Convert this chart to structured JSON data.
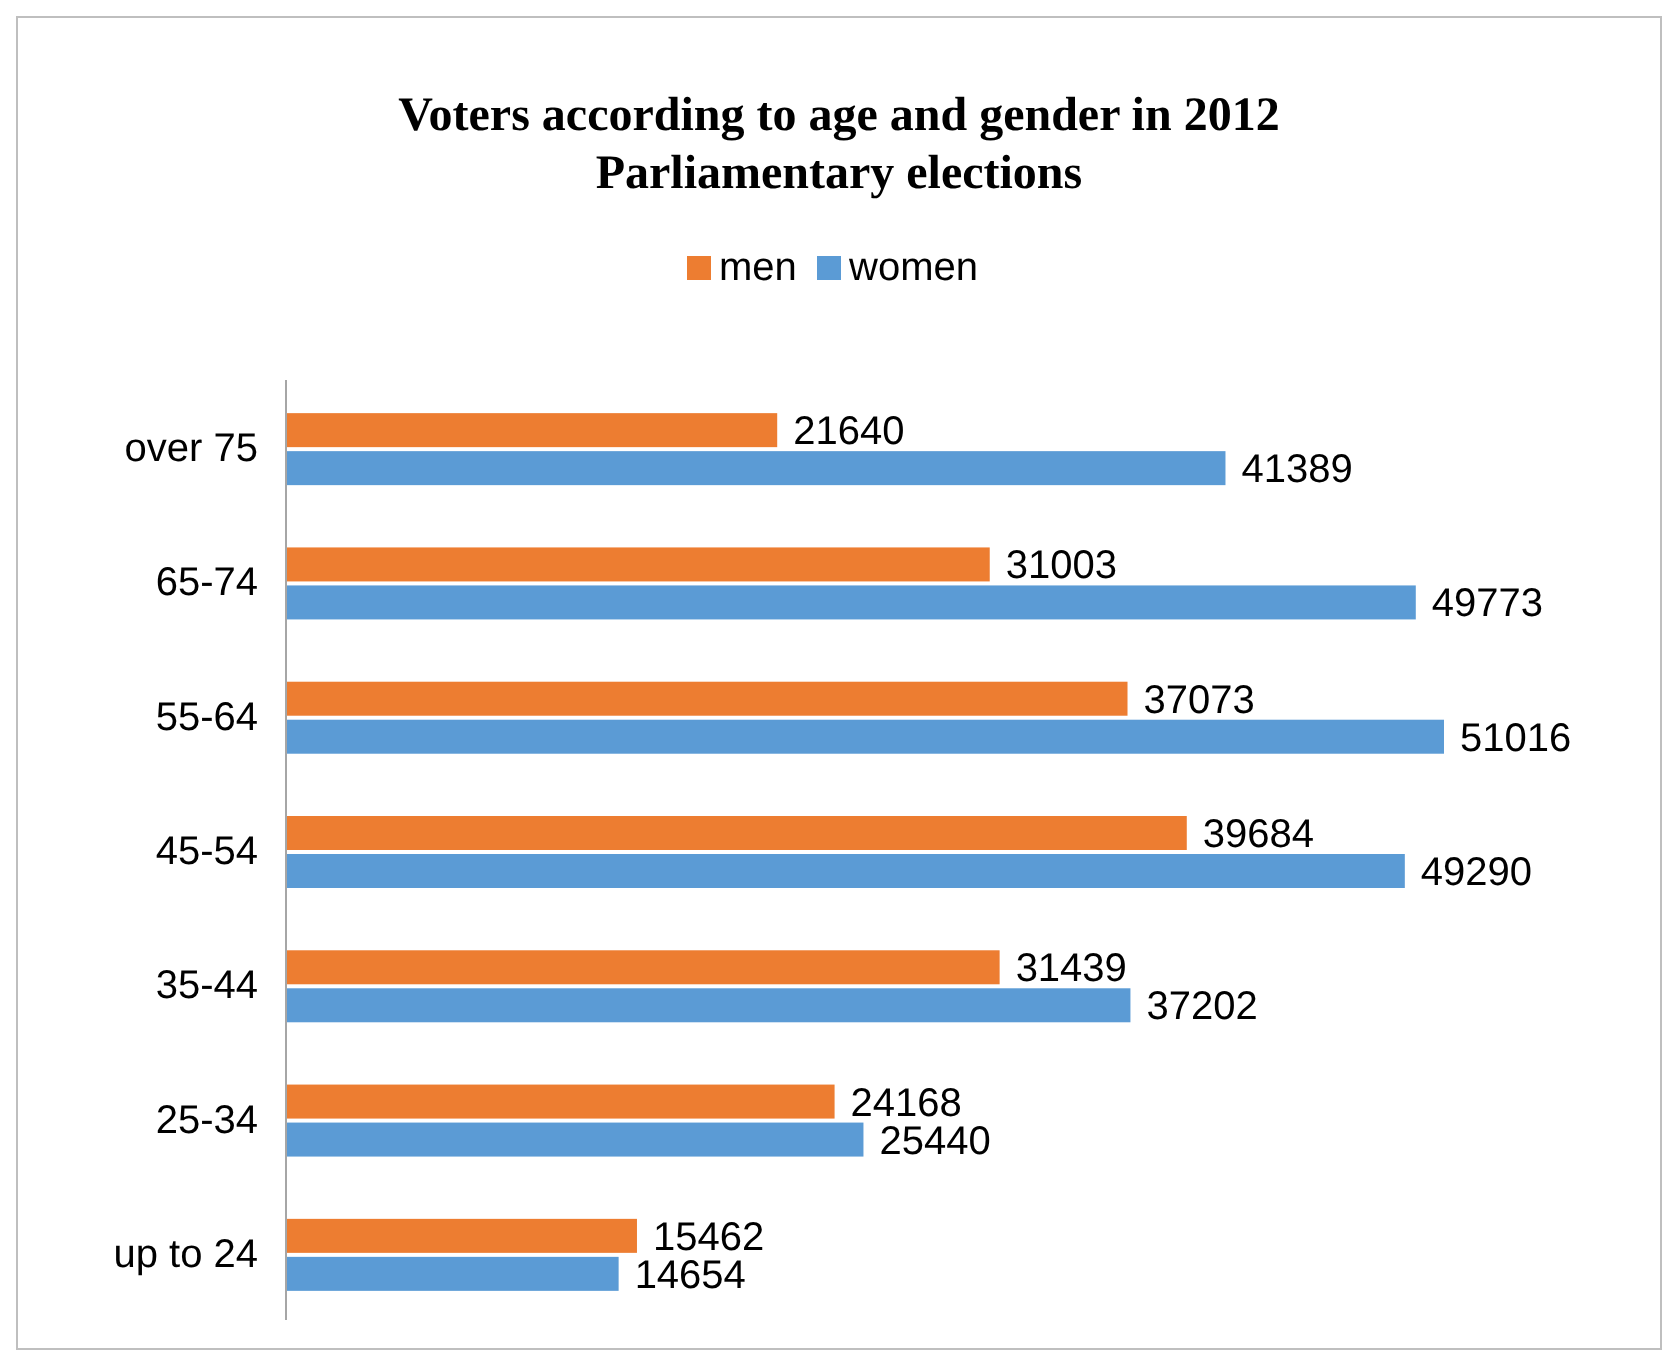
{
  "chart_data": {
    "type": "bar",
    "orientation": "horizontal",
    "title": "Voters according to age and gender in 2012 Parliamentary elections",
    "categories": [
      "over 75",
      "65-74",
      "55-64",
      "45-54",
      "35-44",
      "25-34",
      "up to 24"
    ],
    "series": [
      {
        "name": "men",
        "color": "#ed7d31",
        "values": [
          21640,
          31003,
          37073,
          39684,
          31439,
          24168,
          15462
        ]
      },
      {
        "name": "women",
        "color": "#5b9bd5",
        "values": [
          41389,
          49773,
          51016,
          49290,
          37202,
          25440,
          14654
        ]
      }
    ],
    "data_labels": true,
    "legend": "top"
  }
}
